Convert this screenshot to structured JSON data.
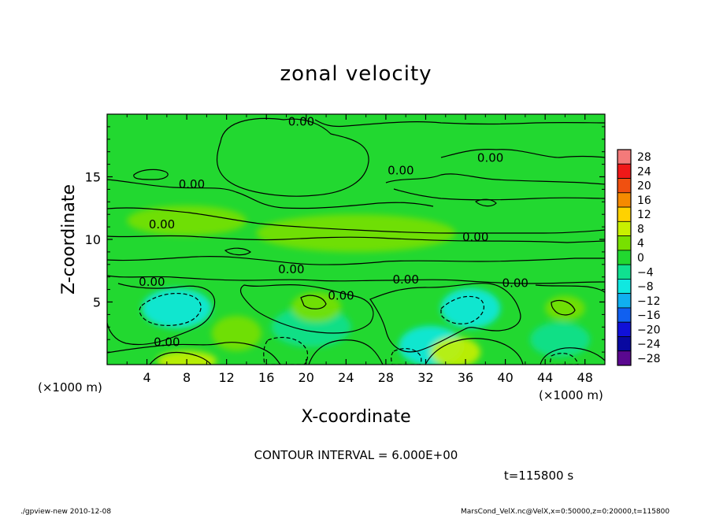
{
  "chart_data": {
    "type": "heatmap",
    "title": "zonal velocity",
    "xlabel": "X-coordinate",
    "ylabel": "Z-coordinate",
    "x_unit": "(×1000 m)",
    "y_unit": "(×1000 m)",
    "xlim": [
      0,
      50
    ],
    "ylim": [
      0,
      20
    ],
    "x_ticks": [
      "4",
      "8",
      "12",
      "16",
      "20",
      "24",
      "28",
      "32",
      "36",
      "40",
      "44",
      "48"
    ],
    "x_tick_values": [
      4,
      8,
      12,
      16,
      20,
      24,
      28,
      32,
      36,
      40,
      44,
      48
    ],
    "y_ticks": [
      "5",
      "10",
      "15"
    ],
    "y_tick_values": [
      5,
      10,
      15
    ],
    "contour_interval_label": "CONTOUR INTERVAL = 6.000E+00",
    "time_label": "t=115800 s",
    "contour_labels": [
      {
        "text": "0.00",
        "x": 19.5,
        "z": 19.4
      },
      {
        "text": "0.00",
        "x": 38.5,
        "z": 16.5
      },
      {
        "text": "0.00",
        "x": 29.5,
        "z": 15.5
      },
      {
        "text": "0.00",
        "x": 8.5,
        "z": 14.4
      },
      {
        "text": "0.00",
        "x": 5.5,
        "z": 11.2
      },
      {
        "text": "0.00",
        "x": 37.0,
        "z": 10.2
      },
      {
        "text": "0.00",
        "x": 18.5,
        "z": 7.6
      },
      {
        "text": "0.00",
        "x": 30.0,
        "z": 6.8
      },
      {
        "text": "0.00",
        "x": 4.5,
        "z": 6.6
      },
      {
        "text": "0.00",
        "x": 41.0,
        "z": 6.5
      },
      {
        "text": "0.00",
        "x": 23.5,
        "z": 5.5
      },
      {
        "text": "0.00",
        "x": 6.0,
        "z": 1.8
      }
    ],
    "field_features": [
      {
        "x": 7,
        "z": 4.5,
        "value": -8,
        "sx": 3.5,
        "sz": 1.6
      },
      {
        "x": 20.5,
        "z": 3.0,
        "value": -6,
        "sx": 4,
        "sz": 1.6
      },
      {
        "x": 32.5,
        "z": 1.5,
        "value": -7,
        "sx": 3.2,
        "sz": 1.6
      },
      {
        "x": 36.5,
        "z": 4.5,
        "value": -8,
        "sx": 3.0,
        "sz": 1.6
      },
      {
        "x": 45.5,
        "z": 2.0,
        "value": -5,
        "sx": 3.0,
        "sz": 1.4
      },
      {
        "x": 21,
        "z": 4.6,
        "value": 5,
        "sx": 2.5,
        "sz": 1.2
      },
      {
        "x": 8,
        "z": 0.3,
        "value": 7,
        "sx": 3,
        "sz": 0.8
      },
      {
        "x": 35,
        "z": 1.0,
        "value": 6,
        "sx": 2.5,
        "sz": 1.2
      },
      {
        "x": 46,
        "z": 4.5,
        "value": 4,
        "sx": 2,
        "sz": 1
      },
      {
        "x": 13,
        "z": 2.5,
        "value": 3,
        "sx": 2.5,
        "sz": 1.4
      },
      {
        "x": 25,
        "z": 10.5,
        "value": 3,
        "sx": 10,
        "sz": 1.5
      },
      {
        "x": 8,
        "z": 11.5,
        "value": 3,
        "sx": 6,
        "sz": 1.2
      }
    ],
    "colorbar": {
      "ticks": [
        "28",
        "24",
        "20",
        "16",
        "12",
        "8",
        "4",
        "0",
        "−4",
        "−8",
        "−12",
        "−16",
        "−20",
        "−24",
        "−28"
      ],
      "levels": [
        28,
        24,
        20,
        16,
        12,
        8,
        4,
        0,
        -4,
        -8,
        -12,
        -16,
        -20,
        -24,
        -28
      ],
      "colors": [
        "#f47a7a",
        "#f01818",
        "#f05010",
        "#f58a00",
        "#ffd200",
        "#c8f000",
        "#78e000",
        "#22d830",
        "#10e090",
        "#10e8e0",
        "#10b0f0",
        "#1060f0",
        "#1010d8",
        "#0808a0",
        "#5a0890"
      ]
    }
  },
  "footer": {
    "left": "./gpview-new   2010-12-08",
    "right": "MarsCond_VelX.nc@VelX,x=0:50000,z=0:20000,t=115800"
  }
}
